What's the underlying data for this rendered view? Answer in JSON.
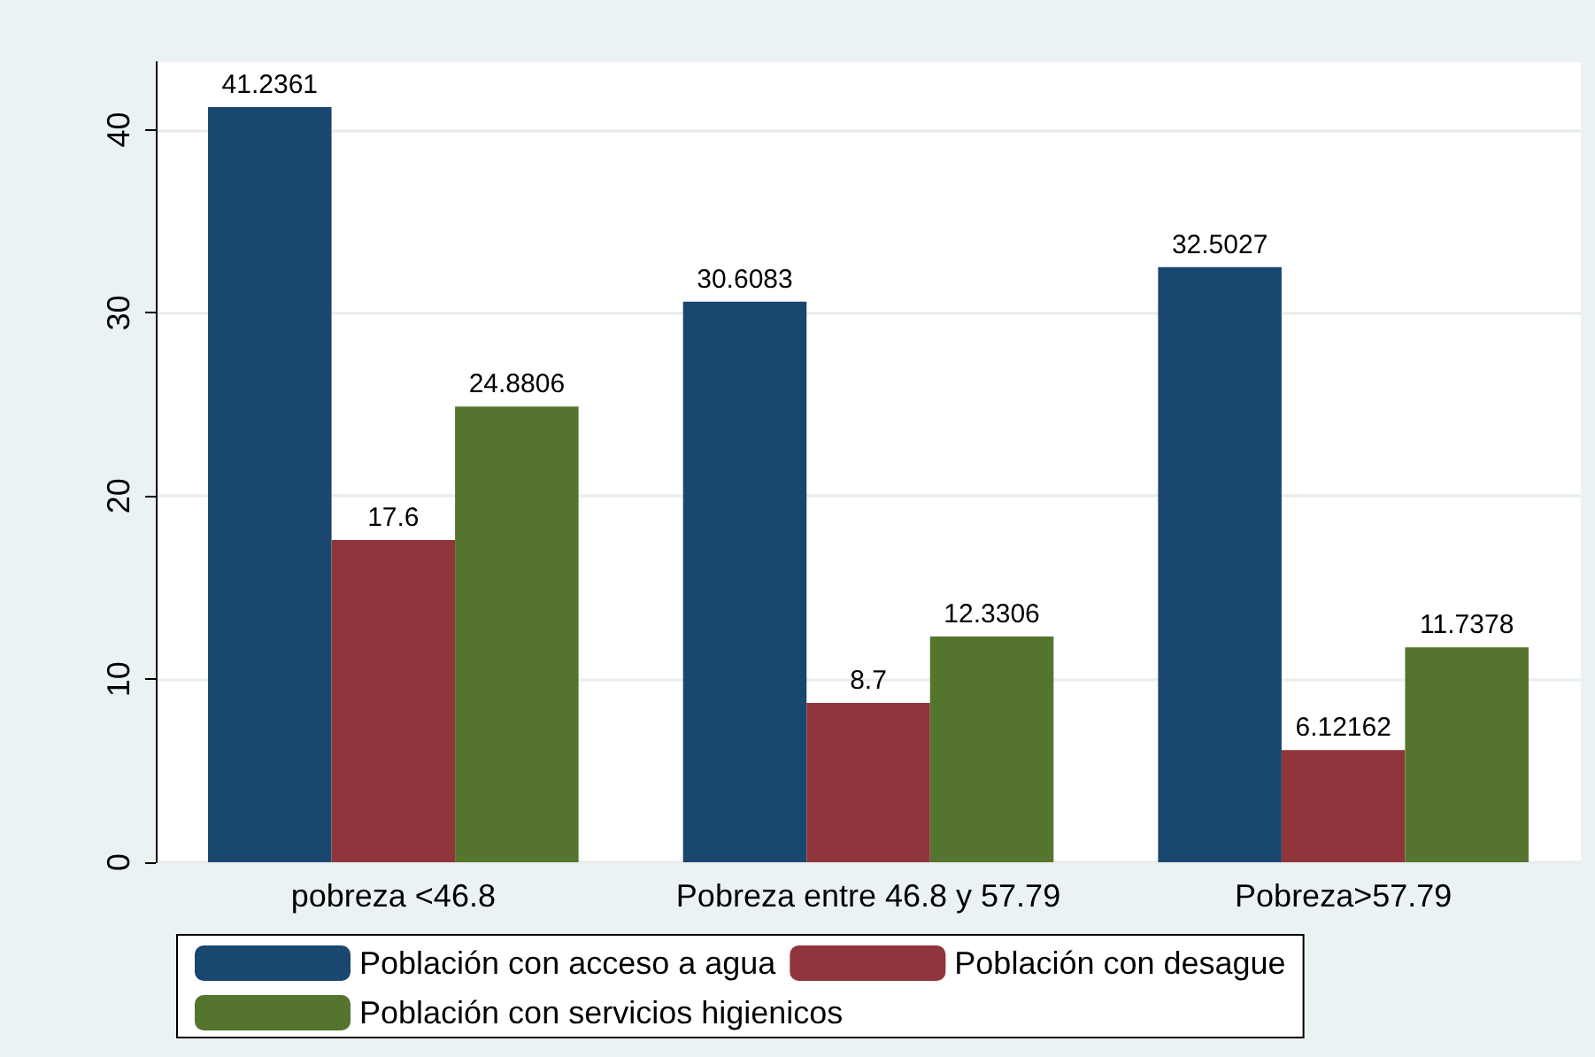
{
  "chart_data": {
    "type": "bar",
    "categories": [
      "pobreza <46.8",
      "Pobreza entre 46.8 y 57.79",
      "Pobreza>57.79"
    ],
    "series": [
      {
        "name": "Población con acceso a agua",
        "color": "#1a476f",
        "values": [
          41.2361,
          30.6083,
          32.5027
        ]
      },
      {
        "name": "Población con desague",
        "color": "#90353b",
        "values": [
          17.6,
          8.7,
          6.12162
        ]
      },
      {
        "name": "Población con servicios higienicos",
        "color": "#55752f",
        "values": [
          24.8806,
          12.3306,
          11.7378
        ]
      }
    ],
    "ylim": [
      0,
      43.7
    ],
    "yticks": [
      0,
      10,
      20,
      30,
      40
    ],
    "grid": "y",
    "legend": "bottom",
    "data_labels": true
  }
}
